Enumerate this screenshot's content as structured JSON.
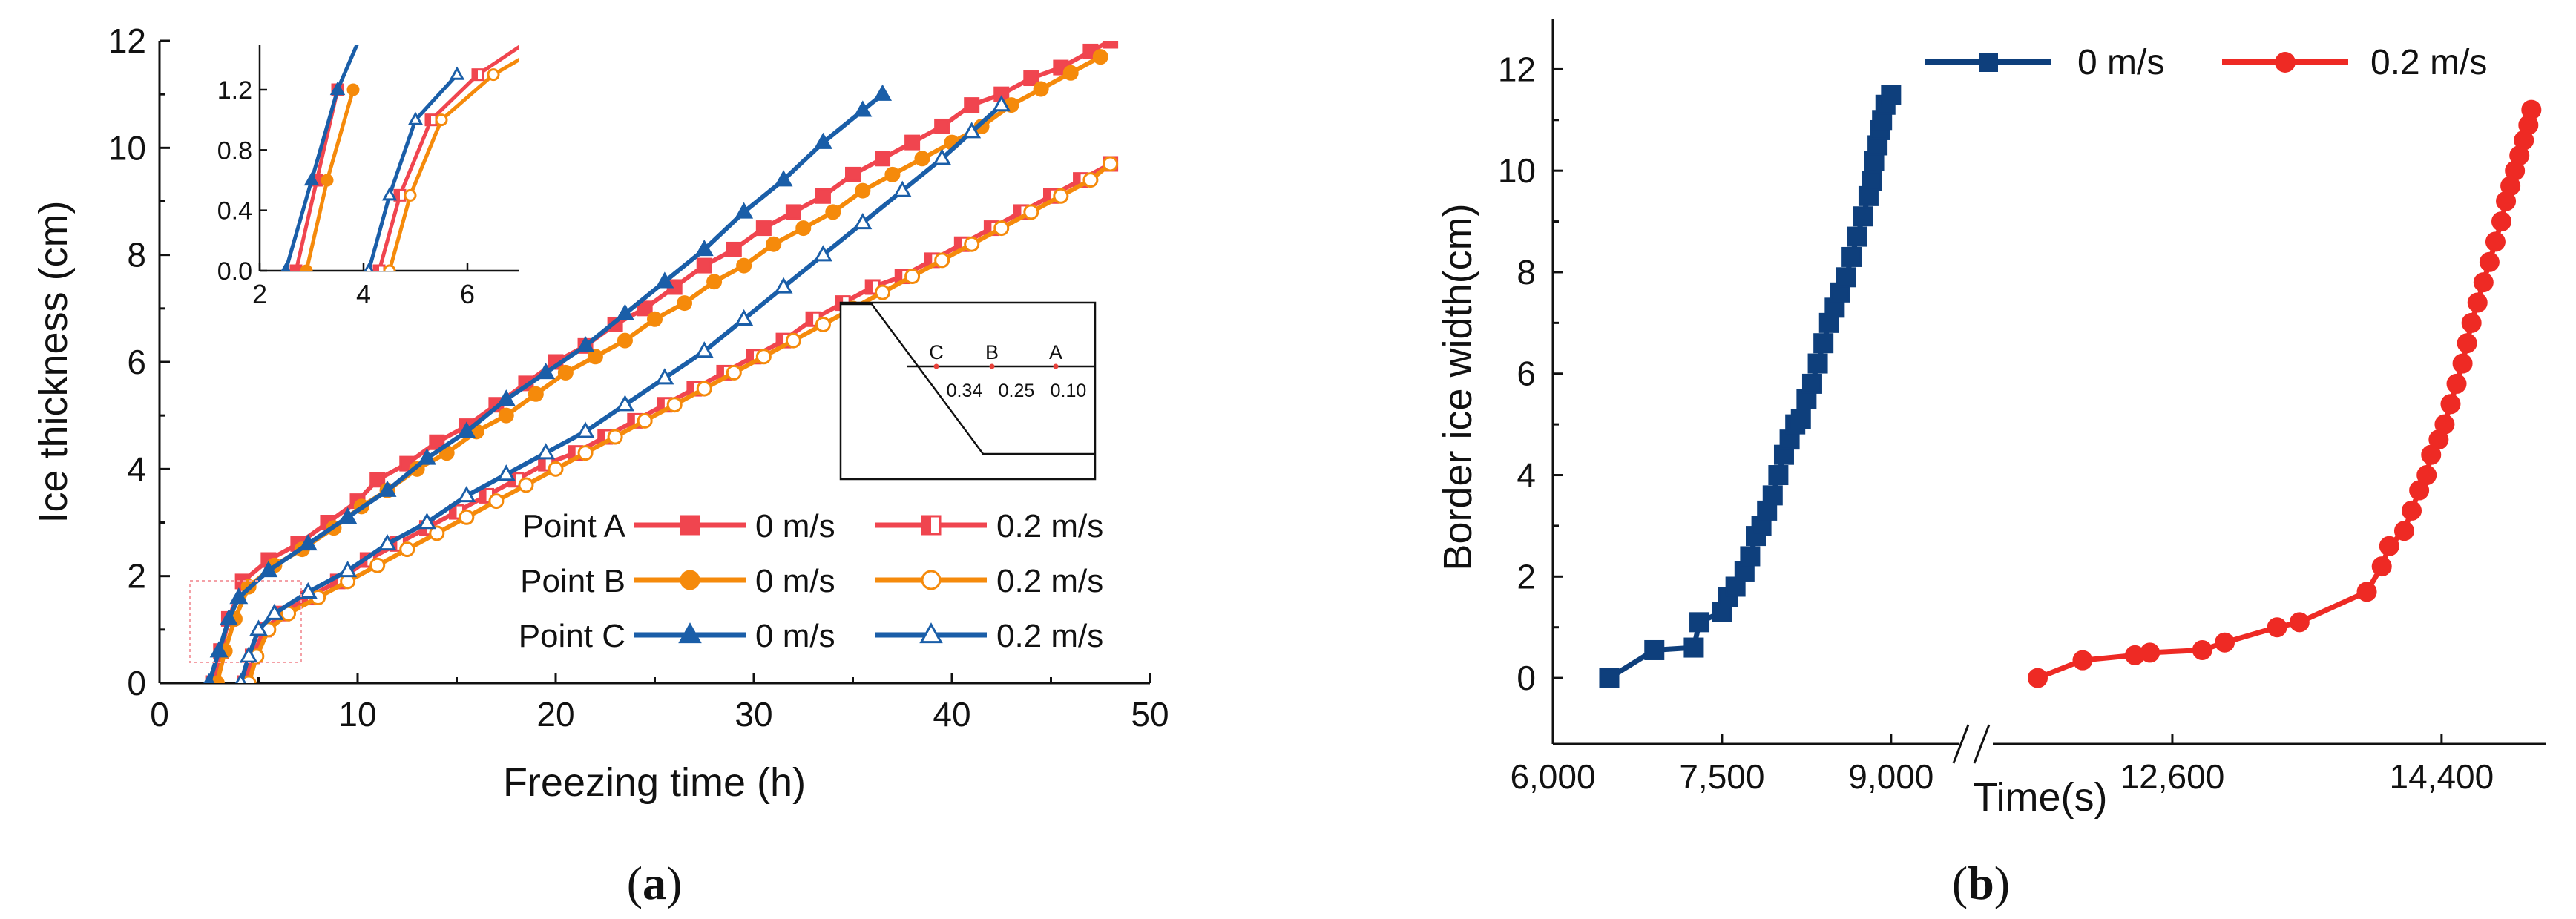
{
  "chart_data": [
    {
      "panel": "a",
      "type": "line",
      "panel_label": "(a)",
      "panel_letter": "a",
      "xlabel": "Freezing time (h)",
      "ylabel": "Ice thickness (cm)",
      "xlim": [
        0,
        50
      ],
      "ylim": [
        0,
        12
      ],
      "xticks": [
        "0",
        "10",
        "20",
        "30",
        "40",
        "50"
      ],
      "yticks": [
        "0",
        "2",
        "4",
        "6",
        "8",
        "10",
        "12"
      ],
      "legend": {
        "rows": [
          "Point A",
          "Point B",
          "Point C"
        ],
        "series_labels": [
          "0 m/s",
          "0.2 m/s"
        ],
        "placement": "lower-right"
      },
      "series": [
        {
          "name": "Point A 0 m/s",
          "point": "A",
          "velocity": "0 m/s",
          "color": "#f0454f",
          "marker": "square",
          "filled": true,
          "x": [
            2.7,
            3.1,
            3.5,
            4.2,
            5.5,
            7,
            8.5,
            10,
            11,
            12.5,
            14,
            15.5,
            17,
            18.5,
            20,
            21.5,
            23,
            24.5,
            26,
            27.5,
            29,
            30.5,
            32,
            33.5,
            35,
            36.5,
            38,
            39.5,
            41,
            42.5,
            44,
            45.5,
            47,
            48
          ],
          "y": [
            0,
            0.6,
            1.2,
            1.9,
            2.3,
            2.6,
            3.0,
            3.4,
            3.8,
            4.1,
            4.5,
            4.8,
            5.2,
            5.6,
            6.0,
            6.3,
            6.7,
            7.0,
            7.4,
            7.8,
            8.1,
            8.5,
            8.8,
            9.1,
            9.5,
            9.8,
            10.1,
            10.4,
            10.8,
            11.0,
            11.3,
            11.5,
            11.8,
            12.0
          ]
        },
        {
          "name": "Point B 0 m/s",
          "point": "B",
          "velocity": "0 m/s",
          "color": "#f58a0b",
          "marker": "circle",
          "filled": true,
          "x": [
            2.9,
            3.3,
            3.8,
            4.5,
            5.8,
            7.2,
            8.8,
            10.2,
            11.5,
            13,
            14.5,
            16,
            17.5,
            19,
            20.5,
            22,
            23.5,
            25,
            26.5,
            28,
            29.5,
            31,
            32.5,
            34,
            35.5,
            37,
            38.5,
            40,
            41.5,
            43,
            44.5,
            46,
            47.5
          ],
          "y": [
            0,
            0.6,
            1.2,
            1.8,
            2.2,
            2.5,
            2.9,
            3.3,
            3.6,
            4.0,
            4.3,
            4.7,
            5.0,
            5.4,
            5.8,
            6.1,
            6.4,
            6.8,
            7.1,
            7.5,
            7.8,
            8.2,
            8.5,
            8.8,
            9.2,
            9.5,
            9.8,
            10.1,
            10.4,
            10.8,
            11.1,
            11.4,
            11.7
          ]
        },
        {
          "name": "Point C 0 m/s",
          "point": "C",
          "velocity": "0 m/s",
          "color": "#1a5ea8",
          "marker": "triangle",
          "filled": true,
          "x": [
            2.5,
            3.0,
            3.5,
            4.0,
            5.5,
            7.5,
            9.5,
            11.5,
            13.5,
            15.5,
            17.5,
            19.5,
            21.5,
            23.5,
            25.5,
            27.5,
            29.5,
            31.5,
            33.5,
            35.5,
            36.5
          ],
          "y": [
            0,
            0.6,
            1.2,
            1.6,
            2.1,
            2.6,
            3.1,
            3.6,
            4.2,
            4.7,
            5.3,
            5.8,
            6.3,
            6.9,
            7.5,
            8.1,
            8.8,
            9.4,
            10.1,
            10.7,
            11.0
          ]
        },
        {
          "name": "Point A 0.2 m/s",
          "point": "A",
          "velocity": "0.2 m/s",
          "color": "#f0454f",
          "marker": "square",
          "filled": false,
          "x": [
            4.3,
            4.7,
            5.3,
            6.2,
            7.5,
            9,
            10.5,
            12,
            13.5,
            15,
            16.5,
            18,
            19.5,
            21,
            22.5,
            24,
            25.5,
            27,
            28.5,
            30,
            31.5,
            33,
            34.5,
            36,
            37.5,
            39,
            40.5,
            42,
            43.5,
            45,
            46.5,
            48
          ],
          "y": [
            0,
            0.5,
            1.0,
            1.3,
            1.6,
            1.9,
            2.3,
            2.6,
            2.9,
            3.2,
            3.5,
            3.8,
            4.1,
            4.3,
            4.6,
            4.9,
            5.2,
            5.5,
            5.8,
            6.1,
            6.4,
            6.8,
            7.1,
            7.4,
            7.6,
            7.9,
            8.2,
            8.5,
            8.8,
            9.1,
            9.4,
            9.7
          ]
        },
        {
          "name": "Point B 0.2 m/s",
          "point": "B",
          "velocity": "0.2 m/s",
          "color": "#f58a0b",
          "marker": "circle",
          "filled": false,
          "x": [
            4.5,
            4.9,
            5.5,
            6.5,
            8,
            9.5,
            11,
            12.5,
            14,
            15.5,
            17,
            18.5,
            20,
            21.5,
            23,
            24.5,
            26,
            27.5,
            29,
            30.5,
            32,
            33.5,
            35,
            36.5,
            38,
            39.5,
            41,
            42.5,
            44,
            45.5,
            47,
            48
          ],
          "y": [
            0,
            0.5,
            1.0,
            1.3,
            1.6,
            1.9,
            2.2,
            2.5,
            2.8,
            3.1,
            3.4,
            3.7,
            4.0,
            4.3,
            4.6,
            4.9,
            5.2,
            5.5,
            5.8,
            6.1,
            6.4,
            6.7,
            7.0,
            7.3,
            7.6,
            7.9,
            8.2,
            8.5,
            8.8,
            9.1,
            9.4,
            9.7
          ]
        },
        {
          "name": "Point C 0.2 m/s",
          "point": "C",
          "velocity": "0.2 m/s",
          "color": "#1a5ea8",
          "marker": "triangle",
          "filled": false,
          "x": [
            4.1,
            4.5,
            5.0,
            5.8,
            7.5,
            9.5,
            11.5,
            13.5,
            15.5,
            17.5,
            19.5,
            21.5,
            23.5,
            25.5,
            27.5,
            29.5,
            31.5,
            33.5,
            35.5,
            37.5,
            39.5,
            41,
            42.5
          ],
          "y": [
            0,
            0.5,
            1.0,
            1.3,
            1.7,
            2.1,
            2.6,
            3.0,
            3.5,
            3.9,
            4.3,
            4.7,
            5.2,
            5.7,
            6.2,
            6.8,
            7.4,
            8.0,
            8.6,
            9.2,
            9.8,
            10.3,
            10.8
          ]
        }
      ],
      "inset_zoom": {
        "xlim": [
          2,
          7
        ],
        "ylim": [
          0,
          1.5
        ],
        "xticks": [
          "2",
          "4",
          "6"
        ],
        "yticks": [
          "0.0",
          "0.4",
          "0.8",
          "1.2"
        ]
      },
      "inset_schematic": {
        "point_labels": [
          "C",
          "B",
          "A"
        ],
        "distance_labels": [
          "0.34",
          "0.25",
          "0.10"
        ]
      }
    },
    {
      "panel": "b",
      "type": "line",
      "panel_label": "(b)",
      "panel_letter": "b",
      "xlabel": "Time(s)",
      "ylabel": "Border ice width(cm)",
      "ylim": [
        -1.3,
        13
      ],
      "xticks": [
        "6,000",
        "7,500",
        "9,000",
        "12,600",
        "14,400"
      ],
      "yticks": [
        "0",
        "2",
        "4",
        "6",
        "8",
        "10",
        "12"
      ],
      "x_axis_break": true,
      "x_segments": [
        {
          "xlim": [
            6000,
            9600
          ]
        },
        {
          "xlim": [
            11400,
            15100
          ]
        }
      ],
      "legend": {
        "placement": "top"
      },
      "series": [
        {
          "name": "0 m/s",
          "color": "#0e3f7c",
          "marker": "square",
          "filled": true,
          "x": [
            6500,
            6900,
            7250,
            7300,
            7500,
            7550,
            7620,
            7700,
            7750,
            7800,
            7850,
            7900,
            7950,
            8000,
            8050,
            8100,
            8150,
            8200,
            8250,
            8300,
            8350,
            8400,
            8450,
            8500,
            8550,
            8600,
            8650,
            8700,
            8750,
            8800,
            8830,
            8850,
            8880,
            8900,
            8920,
            8950,
            9000
          ],
          "y": [
            0,
            0.55,
            0.6,
            1.1,
            1.3,
            1.6,
            1.8,
            2.1,
            2.4,
            2.8,
            3.0,
            3.3,
            3.6,
            4.0,
            4.4,
            4.7,
            5.0,
            5.1,
            5.5,
            5.8,
            6.2,
            6.6,
            7.0,
            7.3,
            7.6,
            7.9,
            8.3,
            8.7,
            9.1,
            9.5,
            9.8,
            10.2,
            10.5,
            10.8,
            11.0,
            11.3,
            11.5
          ]
        },
        {
          "name": "0.2 m/s",
          "color": "#ee2a24",
          "marker": "circle",
          "filled": true,
          "x": [
            11700,
            12000,
            12350,
            12450,
            12800,
            12950,
            13300,
            13450,
            13900,
            14000,
            14050,
            14150,
            14200,
            14250,
            14300,
            14330,
            14380,
            14420,
            14460,
            14500,
            14540,
            14570,
            14600,
            14640,
            14680,
            14720,
            14760,
            14800,
            14830,
            14860,
            14890,
            14920,
            14950,
            14980,
            15000
          ],
          "y": [
            0,
            0.35,
            0.45,
            0.5,
            0.55,
            0.7,
            1.0,
            1.1,
            1.7,
            2.2,
            2.6,
            2.9,
            3.3,
            3.7,
            4.0,
            4.4,
            4.7,
            5.0,
            5.4,
            5.8,
            6.2,
            6.6,
            7.0,
            7.4,
            7.8,
            8.2,
            8.6,
            9.0,
            9.4,
            9.7,
            10.0,
            10.3,
            10.6,
            10.9,
            11.2
          ]
        }
      ]
    }
  ]
}
